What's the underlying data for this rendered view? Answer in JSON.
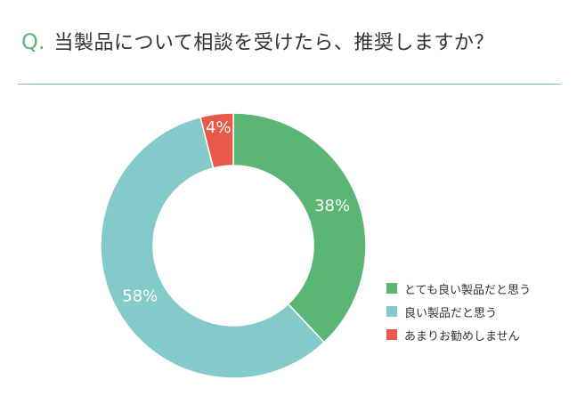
{
  "header": {
    "q_mark": "Q.",
    "question": "当製品について相談を受けたら、推奨しますか？"
  },
  "colors": {
    "accent": "#5bb574",
    "divider": "#7fcb93"
  },
  "chart_data": {
    "type": "pie",
    "donut": true,
    "title": "",
    "categories": [
      "とても良い製品だと思う",
      "良い製品だと思う",
      "あまりお勧めしません"
    ],
    "values": [
      38,
      58,
      4
    ],
    "labels": [
      "38%",
      "58%",
      "4%"
    ],
    "colors": [
      "#5bb574",
      "#84cacb",
      "#e9594a"
    ],
    "legend_placement": "bottom-right"
  }
}
